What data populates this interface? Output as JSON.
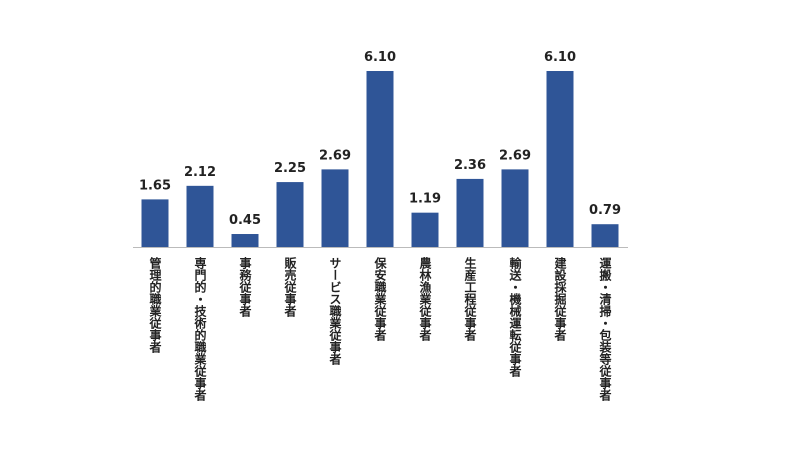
{
  "chart_data": {
    "type": "bar",
    "categories": [
      "管理的職業従事者",
      "専門的・技術的職業従事者",
      "事務従事者",
      "販売従事者",
      "サービス職業従事者",
      "保安職業従事者",
      "農林漁業従事者",
      "生産工程従事者",
      "輸送・機械運転従事者",
      "建設採掘従事者",
      "運搬・清掃・包装等従事者"
    ],
    "values": [
      1.65,
      2.12,
      0.45,
      2.25,
      2.69,
      6.1,
      1.19,
      2.36,
      2.69,
      6.1,
      0.79
    ],
    "value_labels": [
      "1.65",
      "2.12",
      "0.45",
      "2.25",
      "2.69",
      "6.10",
      "1.19",
      "2.36",
      "2.69",
      "6.10",
      "0.79"
    ],
    "color": "#2f5597"
  }
}
